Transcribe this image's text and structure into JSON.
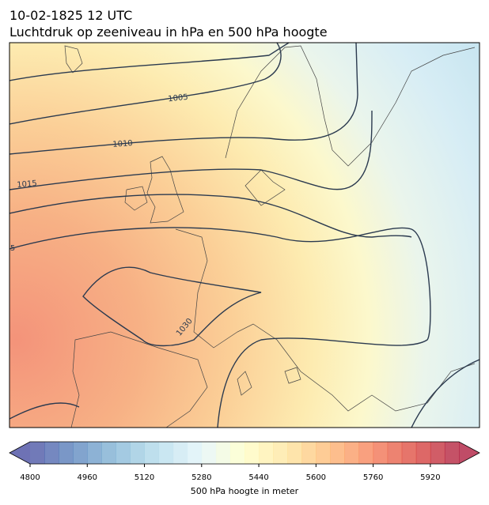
{
  "header": {
    "title_line1": "10-02-1825 12 UTC",
    "title_line2": "Luchtdruk op zeeniveau in hPa en 500 hPa hoogte"
  },
  "map": {
    "contour_labels": [
      "1005",
      "1010",
      "1015",
      "5",
      "1030"
    ]
  },
  "colorbar": {
    "label": "500 hPa hoogte in meter",
    "range": [
      4800,
      6000
    ],
    "ticks": [
      4800,
      4960,
      5120,
      5280,
      5440,
      5600,
      5760,
      5920
    ]
  }
}
